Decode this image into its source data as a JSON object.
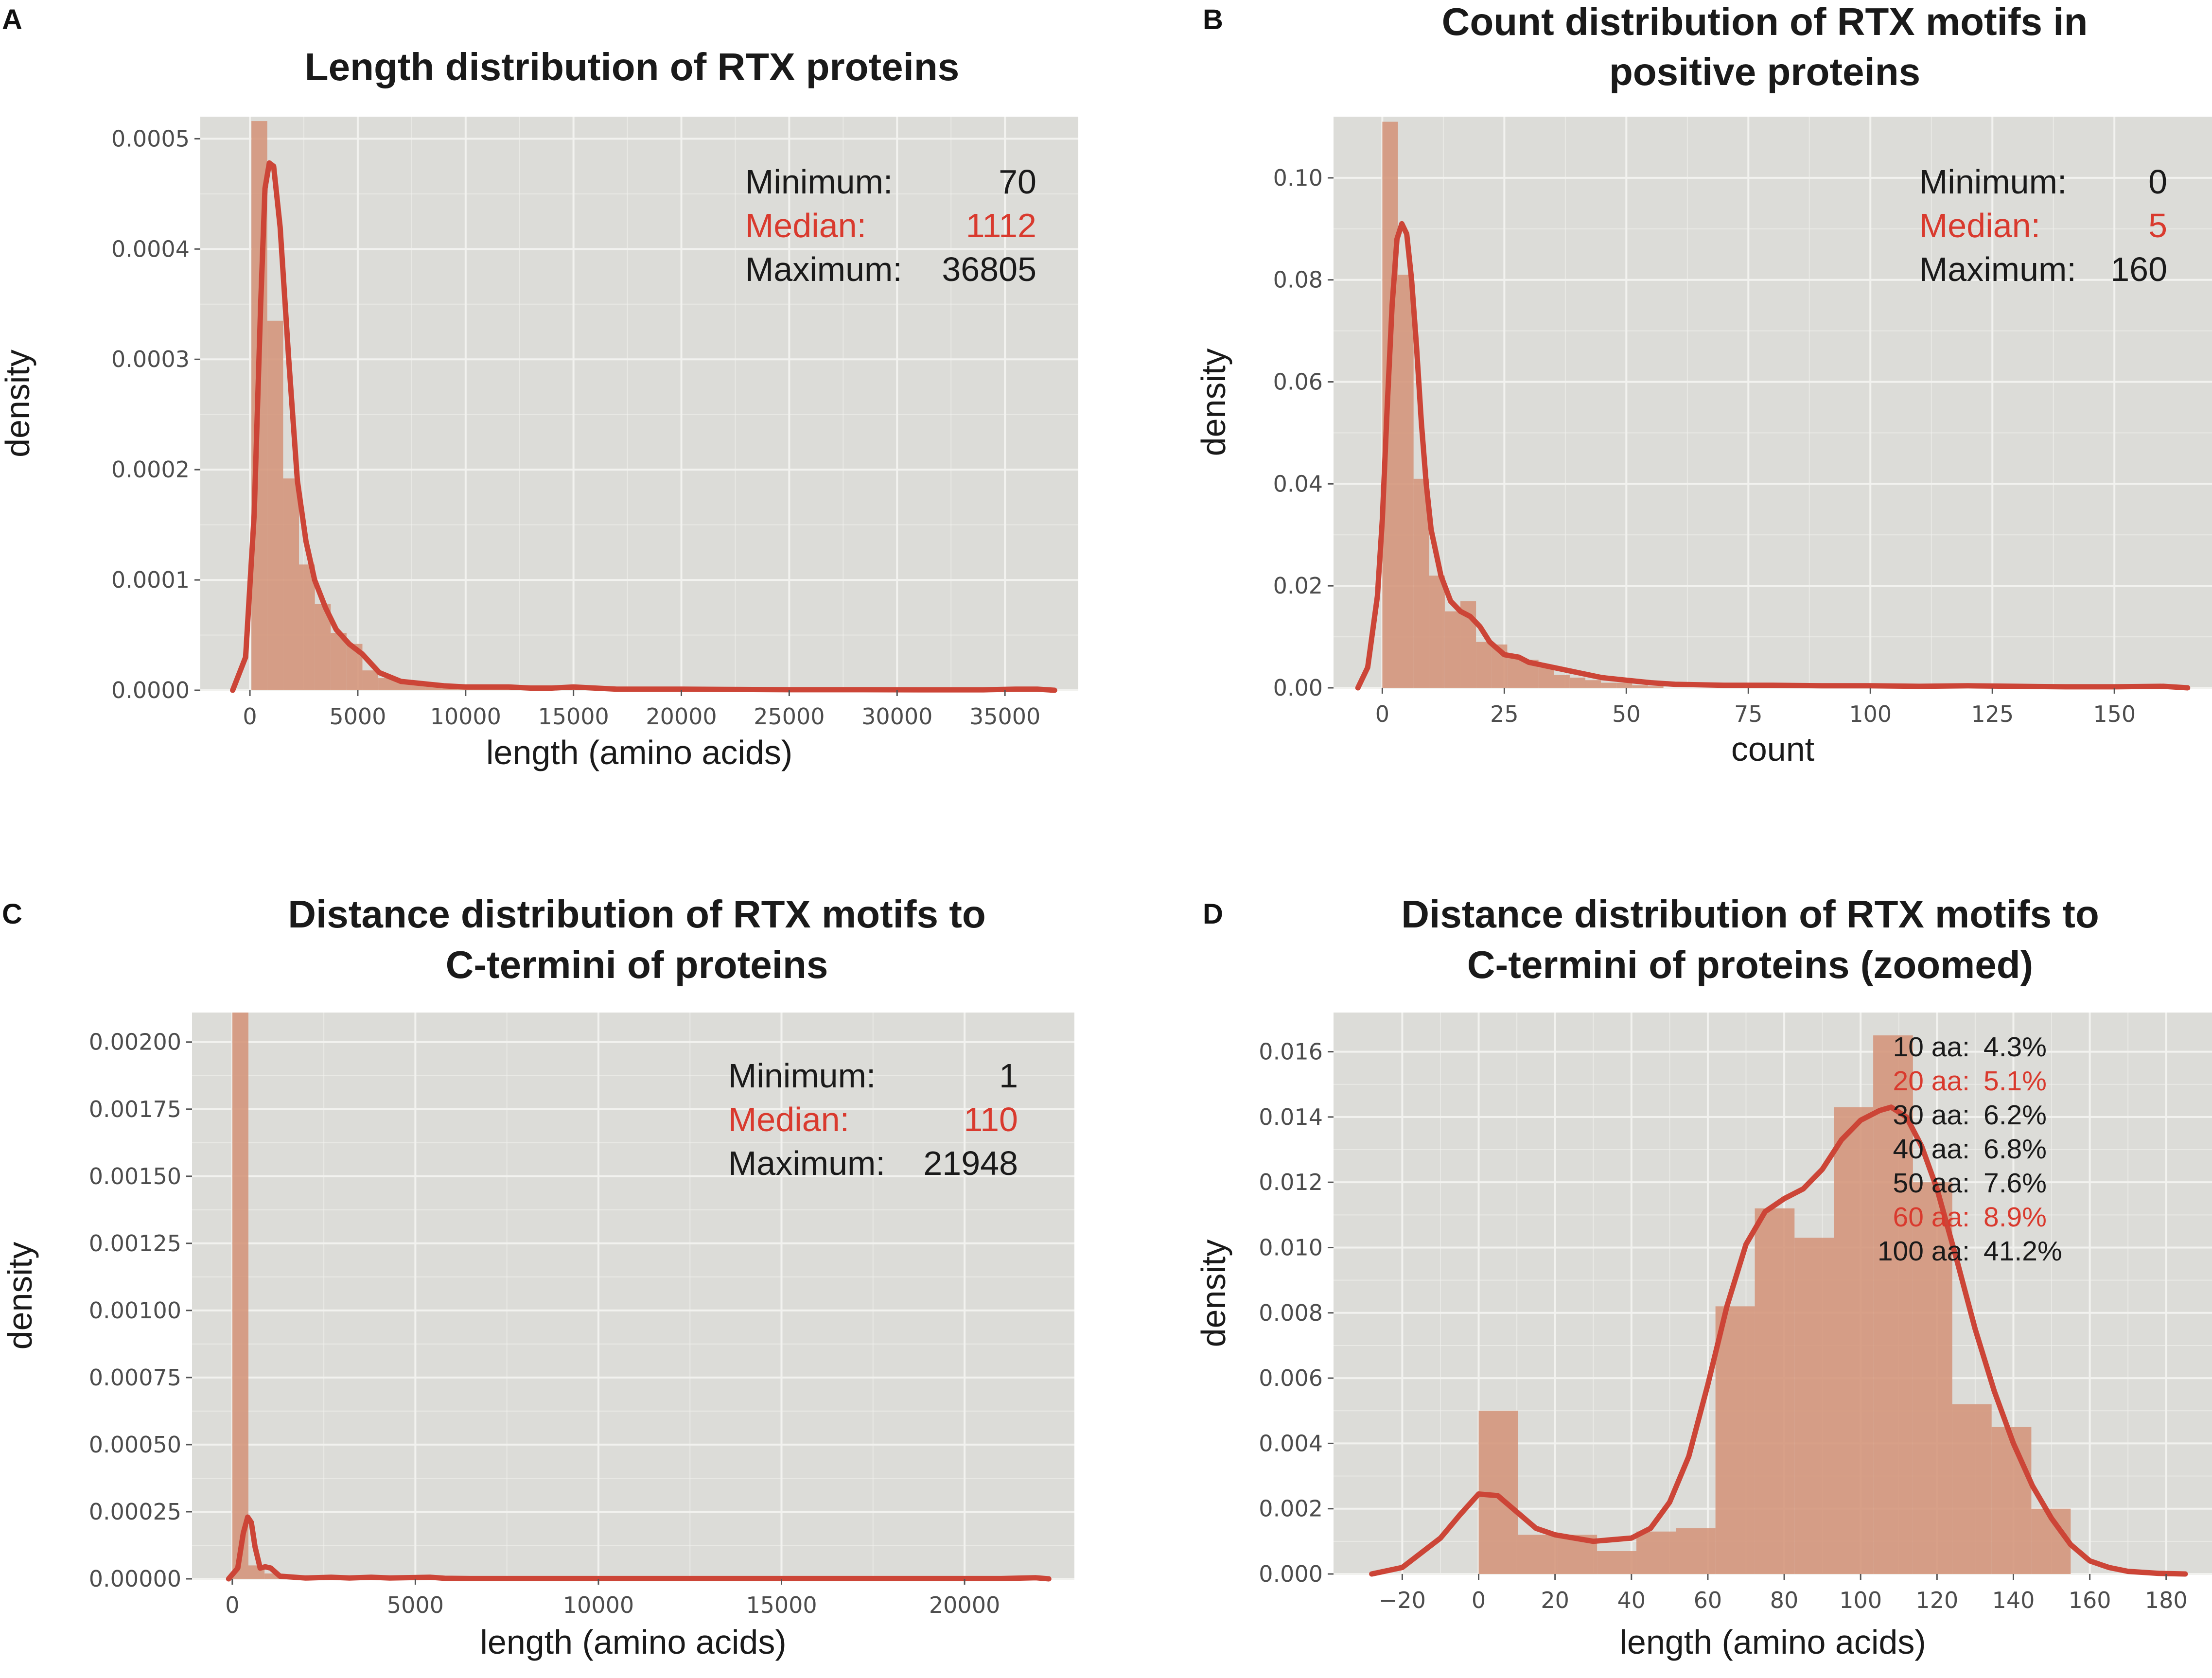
{
  "figure": {
    "colors": {
      "panel_bg": "#dcdcd8",
      "grid": "#f2f2ef",
      "bar": "#d4947a",
      "kde": "#cc4537",
      "text": "#1a1a1a",
      "highlight": "#d93a2e"
    }
  },
  "chart_data": [
    {
      "letter": "A",
      "type": "bar",
      "title": [
        "Length distribution of RTX proteins"
      ],
      "xlabel": "length (amino acids)",
      "ylabel": "density",
      "xlim": [
        -2300,
        38400
      ],
      "ylim": [
        0,
        0.00052
      ],
      "xticks": [
        0,
        5000,
        10000,
        15000,
        20000,
        25000,
        30000,
        35000
      ],
      "xtick_labels": [
        "0",
        "5000",
        "10000",
        "15000",
        "20000",
        "25000",
        "30000",
        "35000"
      ],
      "yticks": [
        0,
        0.0001,
        0.0002,
        0.0003,
        0.0004,
        0.0005
      ],
      "ytick_labels": [
        "0.0000",
        "0.0001",
        "0.0002",
        "0.0003",
        "0.0004",
        "0.0005"
      ],
      "bins": {
        "edges": [
          70,
          805,
          1540,
          2275,
          3010,
          3745,
          4480,
          5215,
          5950,
          6685,
          7420,
          8155,
          8890,
          9625,
          10360,
          11095,
          11830,
          12565,
          13300,
          14035,
          14770,
          15505,
          16240,
          16975
        ],
        "values": [
          0.000516,
          0.000335,
          0.000192,
          0.000114,
          7.8e-05,
          5.2e-05,
          4.2e-05,
          1.8e-05,
          1.1e-05,
          8e-06,
          6e-06,
          4e-06,
          3e-06,
          2e-06,
          2e-06,
          2e-06,
          1e-06,
          1e-06,
          1e-06,
          1e-06,
          2e-06,
          1e-06,
          5e-07
        ]
      },
      "kde": {
        "x": [
          -800,
          -200,
          200,
          500,
          700,
          900,
          1100,
          1400,
          1800,
          2200,
          2600,
          3000,
          3500,
          4000,
          4600,
          5200,
          6000,
          7000,
          8000,
          9000,
          10000,
          11000,
          12000,
          13000,
          14000,
          15000,
          16000,
          17000,
          18000,
          20000,
          22000,
          25000,
          28000,
          31000,
          34000,
          35500,
          36500,
          37300
        ],
        "y": [
          0,
          3e-05,
          0.00016,
          0.00035,
          0.000455,
          0.000478,
          0.000475,
          0.00042,
          0.0003,
          0.00019,
          0.000135,
          0.0001,
          7.5e-05,
          5.5e-05,
          4.2e-05,
          3.3e-05,
          1.6e-05,
          8e-06,
          6e-06,
          4e-06,
          3e-06,
          3e-06,
          3e-06,
          2e-06,
          2e-06,
          3e-06,
          2e-06,
          1e-06,
          1e-06,
          1e-06,
          8e-07,
          5e-07,
          5e-07,
          4e-07,
          4e-07,
          1e-06,
          1e-06,
          0
        ]
      },
      "stats_mode": "split",
      "stats": [
        {
          "label": "Minimum:",
          "value": "70",
          "highlight": false
        },
        {
          "label": "Median:",
          "value": "1112",
          "highlight": true
        },
        {
          "label": "Maximum:",
          "value": "36805",
          "highlight": false
        }
      ]
    },
    {
      "letter": "B",
      "type": "bar",
      "title": [
        "Count distribution of RTX motifs in",
        "positive proteins"
      ],
      "xlabel": "count",
      "ylabel": "density",
      "xlim": [
        -10,
        170
      ],
      "ylim": [
        0,
        0.112
      ],
      "xticks": [
        0,
        25,
        50,
        75,
        100,
        125,
        150
      ],
      "xtick_labels": [
        "0",
        "25",
        "50",
        "75",
        "100",
        "125",
        "150"
      ],
      "yticks": [
        0,
        0.02,
        0.04,
        0.06,
        0.08,
        0.1
      ],
      "ytick_labels": [
        "0.00",
        "0.02",
        "0.04",
        "0.06",
        "0.08",
        "0.10"
      ],
      "bins": {
        "edges": [
          0,
          3.2,
          6.4,
          9.6,
          12.8,
          16,
          19.2,
          22.4,
          25.6,
          28.8,
          32,
          35.2,
          38.4,
          41.6,
          44.8,
          48,
          51.2,
          54.4,
          57.6
        ],
        "values": [
          0.111,
          0.081,
          0.041,
          0.022,
          0.015,
          0.017,
          0.009,
          0.0085,
          0.006,
          0.0055,
          0.004,
          0.0025,
          0.002,
          0.0015,
          0.001,
          0.001,
          0.0005,
          0.0003
        ]
      },
      "kde": {
        "x": [
          -5,
          -3,
          -1,
          0,
          1,
          2,
          3,
          4,
          5,
          6,
          7,
          8,
          9,
          10,
          12,
          14,
          16,
          18,
          20,
          22,
          25,
          28,
          30,
          35,
          40,
          45,
          50,
          55,
          60,
          70,
          80,
          90,
          100,
          110,
          120,
          130,
          140,
          150,
          160,
          165
        ],
        "y": [
          0,
          0.004,
          0.018,
          0.033,
          0.055,
          0.075,
          0.088,
          0.091,
          0.089,
          0.08,
          0.067,
          0.052,
          0.04,
          0.031,
          0.022,
          0.017,
          0.015,
          0.014,
          0.012,
          0.009,
          0.0065,
          0.006,
          0.005,
          0.004,
          0.003,
          0.002,
          0.0015,
          0.001,
          0.0007,
          0.0005,
          0.0005,
          0.0004,
          0.0004,
          0.0003,
          0.0004,
          0.0003,
          0.0002,
          0.0002,
          0.0003,
          0
        ]
      },
      "stats_mode": "split",
      "stats": [
        {
          "label": "Minimum:",
          "value": "0",
          "highlight": false
        },
        {
          "label": "Median:",
          "value": "5",
          "highlight": true
        },
        {
          "label": "Maximum:",
          "value": "160",
          "highlight": false
        }
      ]
    },
    {
      "letter": "C",
      "type": "bar",
      "title": [
        "Distance distribution of RTX motifs to",
        "C-termini of proteins"
      ],
      "xlabel": "length (amino acids)",
      "ylabel": "density",
      "xlim": [
        -1100,
        23000
      ],
      "ylim": [
        0,
        0.00211
      ],
      "xticks": [
        0,
        5000,
        10000,
        15000,
        20000
      ],
      "xtick_labels": [
        "0",
        "5000",
        "10000",
        "15000",
        "20000"
      ],
      "yticks": [
        0,
        0.00025,
        0.0005,
        0.00075,
        0.001,
        0.00125,
        0.0015,
        0.00175,
        0.002
      ],
      "ytick_labels": [
        "0.00000",
        "0.00025",
        "0.00050",
        "0.00075",
        "0.00100",
        "0.00125",
        "0.00150",
        "0.00175",
        "0.00200"
      ],
      "bins": {
        "edges": [
          1,
          440,
          880,
          1320,
          1760,
          2200
        ],
        "values": [
          0.00211,
          5e-05,
          2e-05,
          5e-06,
          2e-06
        ]
      },
      "kde": {
        "x": [
          -100,
          150,
          300,
          420,
          520,
          620,
          760,
          900,
          1050,
          1300,
          2000,
          2700,
          3200,
          3800,
          4300,
          5400,
          5800,
          6500,
          8000,
          10000,
          14000,
          18000,
          21000,
          21950,
          22300
        ],
        "y": [
          0,
          4e-05,
          0.00017,
          0.00023,
          0.00021,
          0.00012,
          4e-05,
          4.5e-05,
          4e-05,
          1e-05,
          3e-06,
          6e-06,
          3e-06,
          6e-06,
          3e-06,
          6e-06,
          2e-06,
          1e-06,
          1e-06,
          1e-06,
          1e-06,
          1e-06,
          1e-06,
          4e-06,
          0
        ]
      },
      "stats_mode": "split",
      "stats": [
        {
          "label": "Minimum:",
          "value": "1",
          "highlight": false
        },
        {
          "label": "Median:",
          "value": "110",
          "highlight": true
        },
        {
          "label": "Maximum:",
          "value": "21948",
          "highlight": false
        }
      ]
    },
    {
      "letter": "D",
      "type": "bar",
      "title": [
        "Distance distribution of RTX motifs to",
        "C-termini of proteins (zoomed)"
      ],
      "xlabel": "length (amino acids)",
      "ylabel": "density",
      "xlim": [
        -38,
        192
      ],
      "ylim": [
        0,
        0.0172
      ],
      "xticks": [
        -20,
        0,
        20,
        40,
        60,
        80,
        100,
        120,
        140,
        160,
        180
      ],
      "xtick_labels": [
        "−20",
        "0",
        "20",
        "40",
        "60",
        "80",
        "100",
        "120",
        "140",
        "160",
        "180"
      ],
      "yticks": [
        0,
        0.002,
        0.004,
        0.006,
        0.008,
        0.01,
        0.012,
        0.014,
        0.016
      ],
      "ytick_labels": [
        "0.000",
        "0.002",
        "0.004",
        "0.006",
        "0.008",
        "0.010",
        "0.012",
        "0.014",
        "0.016"
      ],
      "bins": {
        "edges": [
          0,
          10.3,
          20.7,
          31,
          41.3,
          51.7,
          62,
          72.3,
          82.7,
          93,
          103.3,
          113.7,
          124,
          134.3,
          144.7,
          155
        ],
        "values": [
          0.005,
          0.0012,
          0.0012,
          0.0007,
          0.0013,
          0.0014,
          0.0082,
          0.0112,
          0.0103,
          0.0143,
          0.0165,
          0.012,
          0.0052,
          0.0045,
          0.002
        ]
      },
      "kde": {
        "x": [
          -28,
          -20,
          -10,
          -5,
          0,
          5,
          10,
          15,
          20,
          30,
          40,
          45,
          50,
          55,
          60,
          65,
          70,
          75,
          80,
          85,
          90,
          95,
          100,
          105,
          108,
          112,
          116,
          120,
          125,
          130,
          135,
          140,
          145,
          150,
          155,
          160,
          165,
          170,
          178,
          185
        ],
        "y": [
          0,
          0.0002,
          0.0011,
          0.0018,
          0.00245,
          0.0024,
          0.0019,
          0.0014,
          0.0012,
          0.001,
          0.0011,
          0.0014,
          0.0022,
          0.0036,
          0.0058,
          0.0082,
          0.0101,
          0.0111,
          0.0115,
          0.0118,
          0.0124,
          0.0133,
          0.0139,
          0.0142,
          0.0143,
          0.014,
          0.0131,
          0.0118,
          0.0097,
          0.0075,
          0.0056,
          0.004,
          0.0027,
          0.0017,
          0.0009,
          0.0004,
          0.0002,
          8e-05,
          2e-05,
          0
        ]
      },
      "stats_mode": "aligned",
      "stats": [
        {
          "label": "10 aa:",
          "value": "4.3%",
          "highlight": false
        },
        {
          "label": "20 aa:",
          "value": "5.1%",
          "highlight": true
        },
        {
          "label": "30 aa:",
          "value": "6.2%",
          "highlight": false
        },
        {
          "label": "40 aa:",
          "value": "6.8%",
          "highlight": false
        },
        {
          "label": "50 aa:",
          "value": "7.6%",
          "highlight": false
        },
        {
          "label": "60 aa:",
          "value": "8.9%",
          "highlight": true
        },
        {
          "label": "100 aa:",
          "value": "41.2%",
          "highlight": false
        }
      ]
    }
  ]
}
